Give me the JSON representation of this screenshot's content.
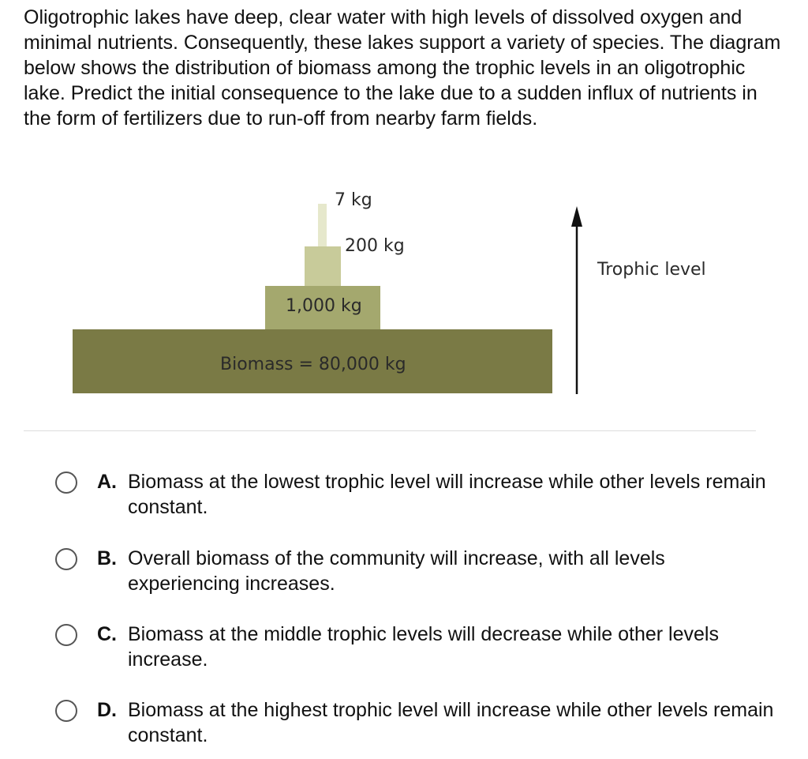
{
  "question": {
    "text": "Oligotrophic lakes have deep, clear water with high levels of dissolved oxygen and minimal nutrients. Consequently, these lakes support a variety of species. The diagram below shows the distribution of biomass among the trophic levels in an oligotrophic lake. Predict the initial consequence to the lake due to a sudden influx of nutrients in the form of fertilizers due to run-off from nearby farm fields."
  },
  "diagram": {
    "levels": [
      {
        "label": "Biomass = 80,000 kg",
        "kg": 80000,
        "color": "#7a7a45"
      },
      {
        "label": "1,000 kg",
        "kg": 1000,
        "color": "#a4a86e"
      },
      {
        "label": "200 kg",
        "kg": 200,
        "color": "#c8cb9a"
      },
      {
        "label": "7 kg",
        "kg": 7,
        "color": "#e6e8cc"
      }
    ],
    "axis_label": "Trophic level"
  },
  "options": [
    {
      "letter": "A.",
      "text": "Biomass at the lowest trophic level will increase while other levels remain constant."
    },
    {
      "letter": "B.",
      "text": "Overall biomass of the community will increase, with all levels experiencing increases."
    },
    {
      "letter": "C.",
      "text": "Biomass at the middle trophic levels will decrease while other levels increase."
    },
    {
      "letter": "D.",
      "text": "Biomass at the highest trophic level will increase while other levels remain constant."
    }
  ]
}
